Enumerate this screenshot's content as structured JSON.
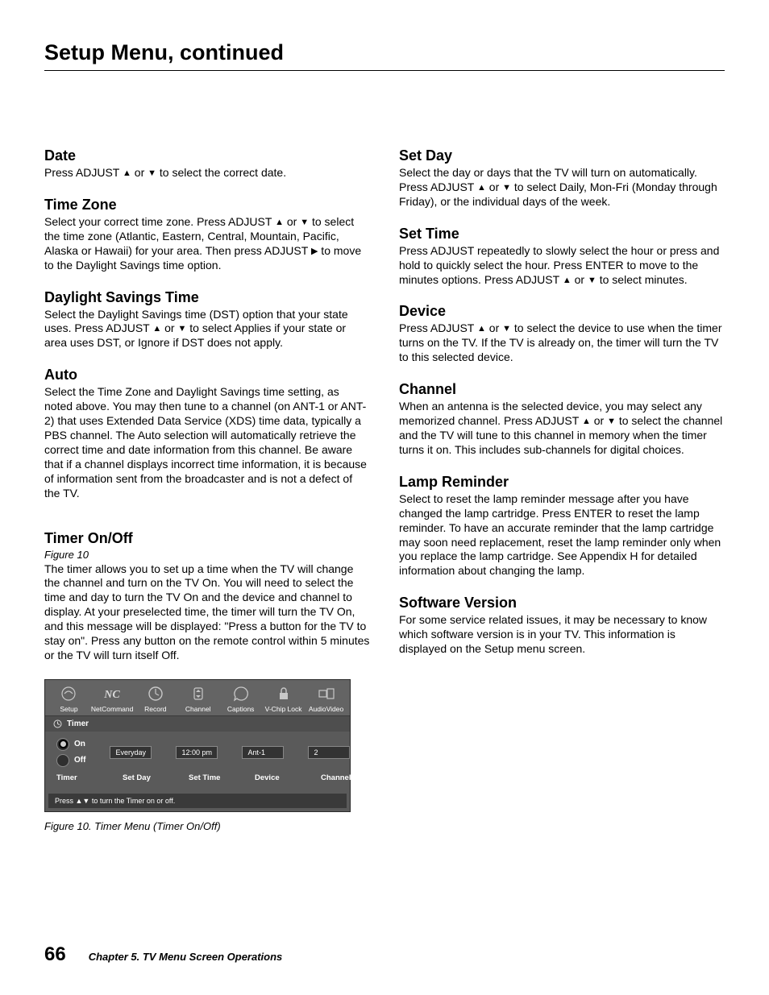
{
  "page": {
    "title": "Setup Menu, continued",
    "number": "66",
    "chapter": "Chapter 5. TV Menu Screen Operations"
  },
  "glyphs": {
    "up": "▲",
    "down": "▼",
    "right": "▶"
  },
  "left": {
    "date": {
      "h": "Date",
      "p": [
        "Press ADJUST ",
        "▲",
        " or ",
        "▼",
        " to select the correct date."
      ]
    },
    "tz": {
      "h": "Time Zone",
      "p": [
        "Select your correct time zone.  Press ADJUST ",
        "▲",
        " or ",
        "▼",
        " to select the time zone (Atlantic, Eastern, Central, Mountain, Pacific, Alaska or Hawaii) for your area.  Then press ADJUST ",
        "▶",
        "  to move to the Daylight Savings time option."
      ]
    },
    "dst": {
      "h": "Daylight Savings Time",
      "p": [
        "Select the Daylight Savings time (DST) option that your state uses.  Press ADJUST ",
        "▲",
        " or ",
        "▼",
        " to select Applies if your state or area uses DST, or Ignore if DST does not apply."
      ]
    },
    "auto": {
      "h": "Auto",
      "p": [
        "Select the Time Zone and Daylight Savings time setting, as noted above.  You may then tune to a channel (on ANT-1 or ANT-2) that uses Extended Data Service (XDS) time data, typically a PBS channel.  The Auto selection will automatically retrieve the correct time and date information from this channel. Be aware that if a channel displays incorrect time information, it is because of information sent from the broadcaster and is not a defect of the TV."
      ]
    },
    "timer": {
      "h": "Timer On/Off",
      "fig": "Figure 10",
      "p": [
        "The timer allows you to set up a time when the TV will change the channel and turn on the TV On.  You will need to select the time and day to turn the TV On and the device and channel to display.  At your preselected time, the timer will turn the TV On, and this message will be displayed: \"Press a button for the TV to stay on\".  Press any button on the remote control within 5 minutes or the TV will turn itself Off."
      ]
    },
    "figure": {
      "tabs": [
        "Setup",
        "NetCommand",
        "Record",
        "Channel",
        "Captions",
        "V-Chip Lock",
        "AudioVideo"
      ],
      "subhead": "Timer",
      "on": "On",
      "off": "Off",
      "fields": {
        "day": "Everyday",
        "time": "12:00 pm",
        "device": "Ant-1",
        "channel": "2"
      },
      "labels": [
        "Timer",
        "Set Day",
        "Set Time",
        "Device",
        "Channel"
      ],
      "hint": "Press ▲▼ to turn the Timer on or off.",
      "caption": "Figure 10. Timer Menu (Timer On/Off)"
    }
  },
  "right": {
    "setday": {
      "h": "Set Day",
      "p": [
        "Select the day or days that the TV will turn on automatically.  Press ADJUST ",
        "▲",
        " or ",
        "▼",
        " to select Daily, Mon-Fri (Monday through Friday), or the individual days of the week."
      ]
    },
    "settime": {
      "h": "Set Time",
      "p": [
        "Press ADJUST  repeatedly to slowly select the hour or press and hold to quickly select the hour.  Press ENTER to move to the minutes options.  Press ADJUST ",
        "▲",
        " or ",
        "▼",
        " to select minutes."
      ]
    },
    "device": {
      "h": "Device",
      "p": [
        "Press ADJUST ",
        "▲",
        " or ",
        "▼",
        " to select the device to use when the timer turns on the TV.  If the TV is already on, the timer will turn the TV to this selected device."
      ]
    },
    "channel": {
      "h": "Channel",
      "p": [
        "When an antenna is the selected device, you may select any memorized channel.  Press ADJUST ",
        "▲",
        " or ",
        "▼",
        " to select the channel and the TV will tune to this channel in memory when the timer turns it on.  This includes sub-channels for digital choices."
      ]
    },
    "lamp": {
      "h": "Lamp Reminder",
      "p": [
        "Select to reset the lamp reminder message after you have changed the lamp cartridge.  Press ENTER to reset the lamp reminder.  To have an accurate reminder that the lamp cartridge may soon need replacement, reset the lamp reminder only when you replace the lamp cartridge.  See Appendix H for detailed information about changing the lamp."
      ]
    },
    "sw": {
      "h": "Software Version",
      "p": [
        "For some service related issues, it may be necessary to know which software version is in your TV.  This information is displayed on the Setup menu screen."
      ]
    }
  }
}
